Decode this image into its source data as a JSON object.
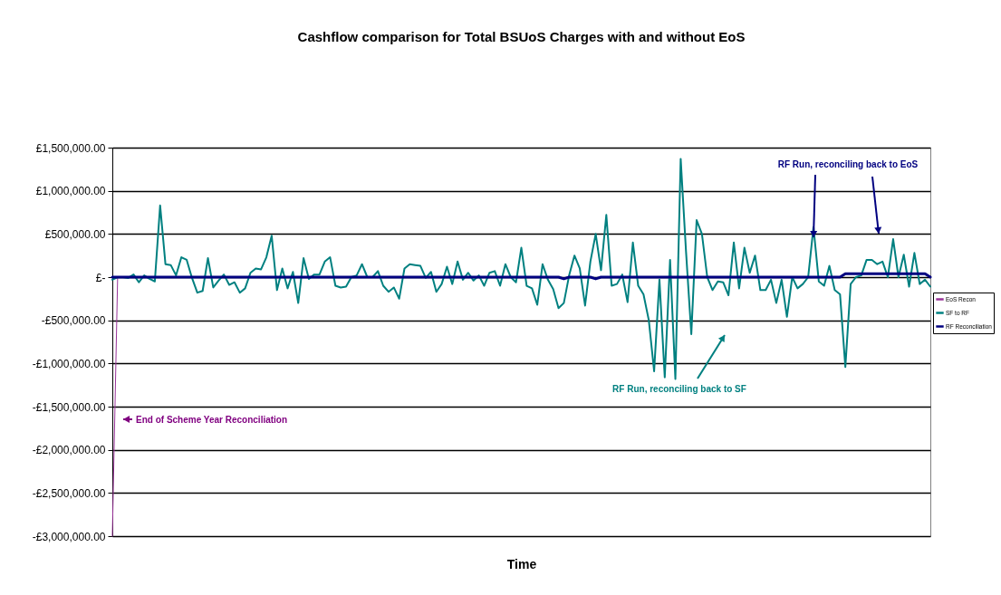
{
  "chart_data": {
    "type": "line",
    "title": "Cashflow comparison for Total BSUoS Charges with and without EoS",
    "xlabel": "Time",
    "categories": [
      null,
      null,
      null,
      null,
      null,
      null,
      null,
      null,
      null,
      null,
      null,
      null,
      null,
      null,
      null,
      null,
      null,
      null,
      null,
      null,
      null,
      null,
      null,
      null,
      null,
      null,
      null,
      null,
      null,
      null,
      null,
      null,
      null,
      null,
      null,
      null,
      null,
      null,
      null,
      null,
      null,
      null,
      null,
      null,
      null,
      null,
      null,
      null,
      null,
      null,
      null,
      null,
      null,
      null,
      null,
      null,
      null,
      null,
      null,
      null,
      null,
      null,
      null,
      null,
      null,
      null,
      null,
      null,
      null,
      null,
      null,
      null,
      null,
      null,
      null,
      null,
      null,
      null,
      null,
      null,
      null,
      null,
      null,
      null,
      null,
      null,
      null,
      null,
      null,
      null,
      null,
      null,
      null,
      null,
      null,
      null,
      null,
      null,
      null,
      null,
      null,
      null,
      null,
      null,
      null,
      null,
      null,
      null,
      null,
      null,
      null,
      null,
      null,
      null,
      null,
      null,
      null,
      null,
      null,
      null,
      null,
      null,
      null,
      null,
      null,
      null,
      null,
      null,
      null,
      null,
      null,
      null,
      null,
      null,
      null,
      null,
      null,
      null,
      null,
      null,
      null,
      null,
      null,
      null,
      null,
      null,
      null,
      null,
      null,
      null,
      null,
      null,
      null,
      null,
      null
    ],
    "series": [
      {
        "name": "EoS Recon",
        "color": "#993399",
        "values": [
          -3000000,
          0,
          null,
          null,
          null,
          null,
          null,
          null,
          null,
          null,
          null,
          null,
          null,
          null,
          null,
          null,
          null,
          null,
          null,
          null,
          null,
          null,
          null,
          null,
          null,
          null,
          null,
          null,
          null,
          null,
          null,
          null,
          null,
          null,
          null,
          null,
          null,
          null,
          null,
          null,
          null,
          null,
          null,
          null,
          null,
          null,
          null,
          null,
          null,
          null,
          null,
          null,
          null,
          null,
          null,
          null,
          null,
          null,
          null,
          null,
          null,
          null,
          null,
          null,
          null,
          null,
          null,
          null,
          null,
          null,
          null,
          null,
          null,
          null,
          null,
          null,
          null,
          null,
          null,
          null,
          null,
          null,
          null,
          null,
          null,
          null,
          null,
          null,
          null,
          null,
          null,
          null,
          null,
          null,
          null,
          null,
          null,
          null,
          null,
          null,
          null,
          null,
          null,
          null,
          null,
          null,
          null,
          null,
          null,
          null,
          null,
          null,
          null,
          null,
          null,
          null,
          null,
          null,
          null,
          null,
          null,
          null,
          null,
          null,
          null,
          null,
          null,
          null,
          null,
          null,
          null,
          null,
          null,
          null,
          null,
          null,
          null,
          null,
          null,
          null,
          null,
          null,
          null,
          null,
          null,
          null,
          null,
          null,
          null,
          null,
          null,
          null,
          null,
          null,
          null
        ]
      },
      {
        "name": "SF to RF",
        "color": "#008080",
        "values": [
          -30000,
          0,
          0,
          -10000,
          30000,
          -60000,
          20000,
          -20000,
          -50000,
          830000,
          150000,
          140000,
          20000,
          230000,
          200000,
          -10000,
          -180000,
          -160000,
          220000,
          -120000,
          -40000,
          30000,
          -90000,
          -60000,
          -180000,
          -130000,
          50000,
          100000,
          90000,
          230000,
          480000,
          -150000,
          100000,
          -130000,
          60000,
          -300000,
          220000,
          -20000,
          30000,
          30000,
          180000,
          230000,
          -100000,
          -120000,
          -110000,
          0,
          20000,
          150000,
          0,
          0,
          70000,
          -100000,
          -170000,
          -120000,
          -250000,
          100000,
          150000,
          140000,
          130000,
          -10000,
          60000,
          -170000,
          -80000,
          120000,
          -80000,
          180000,
          -30000,
          50000,
          -40000,
          20000,
          -100000,
          50000,
          70000,
          -100000,
          150000,
          0,
          -60000,
          340000,
          -100000,
          -130000,
          -320000,
          150000,
          -30000,
          -140000,
          -360000,
          -300000,
          20000,
          250000,
          100000,
          -330000,
          180000,
          500000,
          80000,
          720000,
          -100000,
          -80000,
          30000,
          -290000,
          400000,
          -100000,
          -200000,
          -500000,
          -1090000,
          -30000,
          -1160000,
          200000,
          -1180000,
          1370000,
          300000,
          -660000,
          660000,
          500000,
          0,
          -150000,
          -50000,
          -60000,
          -210000,
          400000,
          -130000,
          340000,
          50000,
          250000,
          -150000,
          -150000,
          -30000,
          -300000,
          -30000,
          -460000,
          0,
          -130000,
          -80000,
          0,
          580000,
          -50000,
          -100000,
          130000,
          -150000,
          -200000,
          -1040000,
          -80000,
          0,
          20000,
          200000,
          200000,
          150000,
          180000,
          0,
          440000,
          0,
          260000,
          -110000,
          280000,
          -80000,
          -30000,
          -110000
        ]
      },
      {
        "name": "RF Reconciliation",
        "color": "#000080",
        "values": [
          0,
          0,
          0,
          0,
          0,
          0,
          0,
          0,
          0,
          0,
          0,
          0,
          0,
          0,
          0,
          0,
          0,
          0,
          0,
          0,
          0,
          0,
          0,
          0,
          0,
          0,
          0,
          0,
          0,
          0,
          0,
          0,
          0,
          0,
          0,
          0,
          0,
          0,
          0,
          0,
          0,
          0,
          0,
          0,
          0,
          0,
          0,
          0,
          0,
          0,
          0,
          0,
          0,
          0,
          0,
          0,
          0,
          0,
          0,
          0,
          0,
          0,
          0,
          0,
          0,
          0,
          0,
          0,
          0,
          0,
          0,
          0,
          0,
          0,
          0,
          0,
          0,
          0,
          0,
          0,
          0,
          0,
          0,
          0,
          0,
          -20000,
          0,
          0,
          0,
          0,
          0,
          -20000,
          0,
          0,
          0,
          0,
          0,
          0,
          0,
          0,
          0,
          0,
          0,
          0,
          0,
          0,
          0,
          0,
          0,
          0,
          0,
          0,
          0,
          0,
          0,
          0,
          0,
          0,
          0,
          0,
          0,
          0,
          0,
          0,
          0,
          0,
          0,
          0,
          0,
          0,
          0,
          0,
          0,
          0,
          0,
          0,
          0,
          0,
          40000,
          40000,
          40000,
          40000,
          40000,
          40000,
          40000,
          40000,
          40000,
          40000,
          40000,
          40000,
          40000,
          40000,
          40000,
          40000,
          0
        ]
      }
    ],
    "ylim": [
      -3000000,
      1500000
    ],
    "yticks": [
      {
        "value": 1500000,
        "label": "£1,500,000.00"
      },
      {
        "value": 1000000,
        "label": "£1,000,000.00"
      },
      {
        "value": 500000,
        "label": "£500,000.00"
      },
      {
        "value": 0,
        "label": "£-"
      },
      {
        "value": -500000,
        "label": "-£500,000.00"
      },
      {
        "value": -1000000,
        "label": "-£1,000,000.00"
      },
      {
        "value": -1500000,
        "label": "-£1,500,000.00"
      },
      {
        "value": -2000000,
        "label": "-£2,000,000.00"
      },
      {
        "value": -2500000,
        "label": "-£2,500,000.00"
      },
      {
        "value": -3000000,
        "label": "-£3,000,000.00"
      }
    ],
    "grid": "y",
    "legend": "right",
    "tick_labels": "y",
    "annotations": [
      "End of Scheme Year Reconciliation",
      "RF Run, reconciling back to SF",
      "RF Run, reconciling back to EoS"
    ]
  }
}
